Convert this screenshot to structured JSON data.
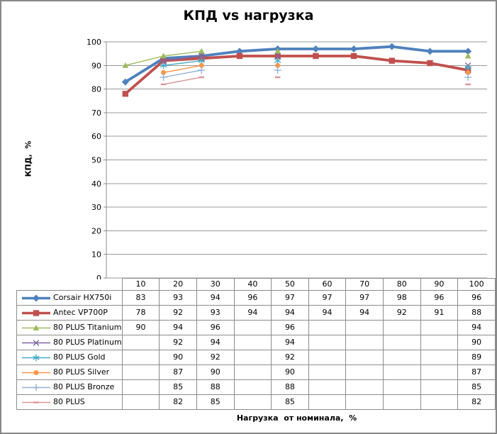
{
  "chart_data": {
    "type": "line",
    "title": "КПД vs нагрузка",
    "xlabel": "Нагрузка  от номинала,  %",
    "ylabel": "КПД,  %",
    "ylim": [
      0,
      100
    ],
    "ytick_step": 10,
    "grid": true,
    "legend_position": "table-left-of-data-rows",
    "categories": [
      10,
      20,
      30,
      40,
      50,
      60,
      70,
      80,
      90,
      100
    ],
    "series": [
      {
        "name": "Corsair HX750i",
        "color": "#4F81BD",
        "marker": "diamond",
        "thick": true,
        "values": [
          83,
          93,
          94,
          96,
          97,
          97,
          97,
          98,
          96,
          96
        ]
      },
      {
        "name": "Antec VP700P",
        "color": "#C0504D",
        "marker": "square",
        "thick": true,
        "values": [
          78,
          92,
          93,
          94,
          94,
          94,
          94,
          92,
          91,
          88
        ]
      },
      {
        "name": "80 PLUS Titanium",
        "color": "#9BBB59",
        "marker": "triangle",
        "thick": false,
        "values": [
          90,
          94,
          96,
          null,
          96,
          null,
          null,
          null,
          null,
          94
        ]
      },
      {
        "name": "80 PLUS Platinum",
        "color": "#8064A2",
        "marker": "x",
        "thick": false,
        "values": [
          null,
          92,
          94,
          null,
          94,
          null,
          null,
          null,
          null,
          90
        ]
      },
      {
        "name": "80 PLUS Gold",
        "color": "#4BACC6",
        "marker": "asterisk",
        "thick": false,
        "values": [
          null,
          90,
          92,
          null,
          92,
          null,
          null,
          null,
          null,
          89
        ]
      },
      {
        "name": "80 PLUS Silver",
        "color": "#F79646",
        "marker": "circle",
        "thick": false,
        "values": [
          null,
          87,
          90,
          null,
          90,
          null,
          null,
          null,
          null,
          87
        ]
      },
      {
        "name": "80 PLUS Bronze",
        "color": "#95B3D7",
        "marker": "plus",
        "thick": false,
        "values": [
          null,
          85,
          88,
          null,
          88,
          null,
          null,
          null,
          null,
          85
        ]
      },
      {
        "name": "80 PLUS",
        "color": "#D99694",
        "marker": "dash",
        "thick": false,
        "values": [
          null,
          82,
          85,
          null,
          85,
          null,
          null,
          null,
          null,
          82
        ]
      }
    ],
    "colors": {
      "gridline": "#989898",
      "axis": "#8c8c8c",
      "table_border": "#8c8c8c",
      "frame_border": "#898989",
      "text": "#000000"
    }
  }
}
